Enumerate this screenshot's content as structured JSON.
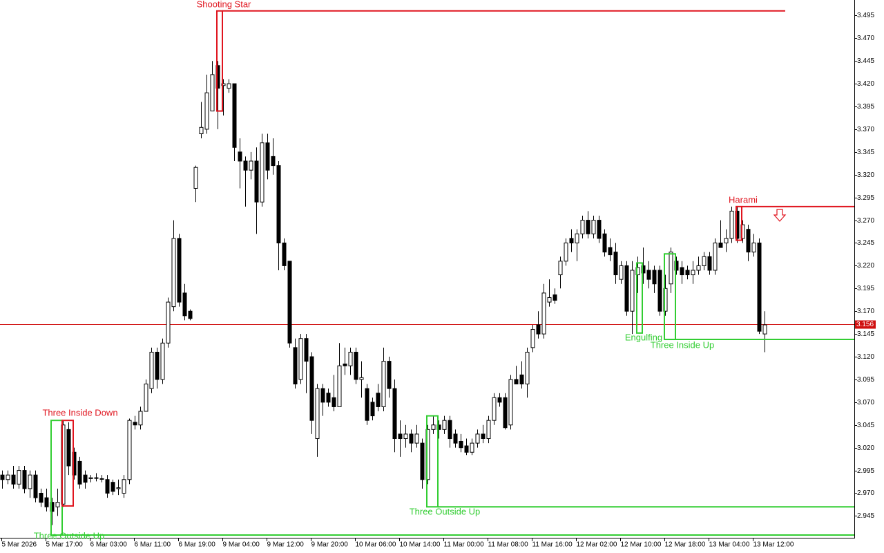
{
  "chart_data": {
    "type": "candlestick",
    "up_color": "#ffffff",
    "down_color": "#000000",
    "outline_color": "#000000",
    "ylim": [
      2.921,
      3.512
    ],
    "yticks": [
      2.945,
      {
        "value": 2.97,
        "label": "2.970"
      },
      2.995,
      {
        "value": 3.02,
        "label": "3.020"
      },
      3.045,
      {
        "value": 3.07,
        "label": "3.070"
      },
      3.095,
      {
        "value": 3.12,
        "label": "3.120"
      },
      3.145,
      {
        "value": 3.17,
        "label": "3.170"
      },
      3.195,
      {
        "value": 3.22,
        "label": "3.220"
      },
      3.245,
      {
        "value": 3.27,
        "label": "3.270"
      },
      3.295,
      {
        "value": 3.32,
        "label": "3.320"
      },
      3.345,
      {
        "value": 3.37,
        "label": "3.370"
      },
      3.395,
      {
        "value": 3.42,
        "label": "3.420"
      },
      3.445,
      {
        "value": 3.47,
        "label": "3.470"
      },
      3.495
    ],
    "xtick_labels": [
      "5 Mar 2026",
      "5 Mar 17:00",
      "6 Mar 03:00",
      "6 Mar 11:00",
      "6 Mar 19:00",
      "9 Mar 04:00",
      "9 Mar 12:00",
      "9 Mar 20:00",
      "10 Mar 06:00",
      "10 Mar 14:00",
      "11 Mar 00:00",
      "11 Mar 08:00",
      "11 Mar 16:00",
      "12 Mar 02:00",
      "12 Mar 10:00",
      "12 Mar 18:00",
      "13 Mar 04:00",
      "13 Mar 12:00"
    ],
    "current_price": 3.156,
    "current_price_color": "#d01010",
    "ohlc": [
      [
        2.99,
        2.995,
        2.975,
        2.985
      ],
      [
        2.985,
        2.995,
        2.98,
        2.99
      ],
      [
        2.99,
        3.0,
        2.975,
        2.98
      ],
      [
        2.98,
        3.0,
        2.975,
        2.995
      ],
      [
        2.995,
        3.0,
        2.97,
        2.975
      ],
      [
        2.975,
        2.995,
        2.965,
        2.99
      ],
      [
        2.99,
        2.995,
        2.96,
        2.965
      ],
      [
        2.97,
        2.975,
        2.955,
        2.96
      ],
      [
        2.965,
        2.975,
        2.95,
        2.955
      ],
      [
        2.96,
        2.965,
        2.935,
        2.95
      ],
      [
        2.955,
        2.975,
        2.945,
        2.96
      ],
      [
        2.958,
        3.05,
        2.955,
        3.045
      ],
      [
        3.04,
        3.048,
        2.99,
        3.0
      ],
      [
        3.015,
        3.02,
        2.985,
        2.99
      ],
      [
        3.005,
        3.01,
        2.975,
        2.98
      ],
      [
        2.99,
        2.995,
        2.975,
        2.982
      ],
      [
        2.986,
        2.99,
        2.982,
        2.987
      ],
      [
        2.987,
        2.992,
        2.983,
        2.987
      ],
      [
        2.986,
        2.99,
        2.982,
        2.986
      ],
      [
        2.985,
        2.99,
        2.965,
        2.97
      ],
      [
        2.982,
        2.985,
        2.968,
        2.972
      ],
      [
        2.975,
        2.985,
        2.968,
        2.976
      ],
      [
        2.97,
        2.99,
        2.965,
        2.985
      ],
      [
        2.985,
        3.052,
        2.98,
        3.05
      ],
      [
        3.048,
        3.055,
        3.04,
        3.045
      ],
      [
        3.045,
        3.065,
        3.04,
        3.06
      ],
      [
        3.06,
        3.095,
        3.06,
        3.09
      ],
      [
        3.085,
        3.13,
        3.08,
        3.125
      ],
      [
        3.125,
        3.13,
        3.085,
        3.095
      ],
      [
        3.095,
        3.14,
        3.09,
        3.135
      ],
      [
        3.135,
        3.185,
        3.13,
        3.18
      ],
      [
        3.175,
        3.27,
        3.17,
        3.25
      ],
      [
        3.25,
        3.255,
        3.175,
        3.18
      ],
      [
        3.19,
        3.2,
        3.16,
        3.165
      ],
      [
        3.17,
        3.172,
        3.16,
        3.162
      ],
      [
        3.305,
        3.33,
        3.29,
        3.328
      ],
      [
        3.365,
        3.4,
        3.36,
        3.372
      ],
      [
        3.37,
        3.43,
        3.365,
        3.41
      ],
      [
        3.39,
        3.445,
        3.39,
        3.43
      ],
      [
        3.44,
        3.445,
        3.37,
        3.415
      ],
      [
        3.418,
        3.425,
        3.385,
        3.42
      ],
      [
        3.415,
        3.425,
        3.41,
        3.42
      ],
      [
        3.42,
        3.42,
        3.335,
        3.35
      ],
      [
        3.345,
        3.36,
        3.305,
        3.335
      ],
      [
        3.335,
        3.34,
        3.285,
        3.325
      ],
      [
        3.325,
        3.345,
        3.315,
        3.335
      ],
      [
        3.335,
        3.35,
        3.255,
        3.29
      ],
      [
        3.29,
        3.365,
        3.285,
        3.355
      ],
      [
        3.355,
        3.365,
        3.315,
        3.325
      ],
      [
        3.34,
        3.36,
        3.32,
        3.33
      ],
      [
        3.33,
        3.335,
        3.215,
        3.245
      ],
      [
        3.245,
        3.25,
        3.215,
        3.22
      ],
      [
        3.225,
        3.225,
        3.13,
        3.135
      ],
      [
        3.13,
        3.14,
        3.085,
        3.09
      ],
      [
        3.095,
        3.145,
        3.09,
        3.14
      ],
      [
        3.14,
        3.145,
        3.08,
        3.115
      ],
      [
        3.12,
        3.125,
        3.035,
        3.05
      ],
      [
        3.03,
        3.09,
        3.01,
        3.085
      ],
      [
        3.085,
        3.09,
        3.055,
        3.07
      ],
      [
        3.08,
        3.085,
        3.065,
        3.07
      ],
      [
        3.075,
        3.1,
        3.06,
        3.065
      ],
      [
        3.065,
        3.135,
        3.065,
        3.11
      ],
      [
        3.112,
        3.13,
        3.1,
        3.11
      ],
      [
        3.11,
        3.13,
        3.1,
        3.125
      ],
      [
        3.125,
        3.13,
        3.09,
        3.095
      ],
      [
        3.095,
        3.115,
        3.075,
        3.097
      ],
      [
        3.085,
        3.09,
        3.045,
        3.05
      ],
      [
        3.07,
        3.075,
        3.05,
        3.055
      ],
      [
        3.08,
        3.09,
        3.06,
        3.065
      ],
      [
        3.065,
        3.13,
        3.06,
        3.115
      ],
      [
        3.115,
        3.12,
        3.075,
        3.085
      ],
      [
        3.085,
        3.095,
        3.015,
        3.03
      ],
      [
        3.035,
        3.05,
        3.01,
        3.03
      ],
      [
        3.03,
        3.045,
        3.02,
        3.035
      ],
      [
        3.035,
        3.04,
        3.015,
        3.025
      ],
      [
        3.025,
        3.045,
        3.02,
        3.035
      ],
      [
        3.025,
        3.03,
        2.975,
        2.985
      ],
      [
        2.985,
        3.045,
        2.98,
        3.04
      ],
      [
        3.04,
        3.055,
        3.035,
        3.045
      ],
      [
        3.045,
        3.05,
        3.03,
        3.04
      ],
      [
        3.04,
        3.055,
        3.035,
        3.05
      ],
      [
        3.05,
        3.055,
        3.02,
        3.03
      ],
      [
        3.035,
        3.04,
        3.02,
        3.025
      ],
      [
        3.027,
        3.035,
        3.015,
        3.02
      ],
      [
        3.022,
        3.03,
        3.012,
        3.015
      ],
      [
        3.015,
        3.03,
        3.012,
        3.025
      ],
      [
        3.025,
        3.04,
        3.02,
        3.035
      ],
      [
        3.035,
        3.045,
        3.025,
        3.03
      ],
      [
        3.03,
        3.055,
        3.025,
        3.05
      ],
      [
        3.05,
        3.08,
        3.045,
        3.075
      ],
      [
        3.075,
        3.08,
        3.065,
        3.07
      ],
      [
        3.075,
        3.08,
        3.04,
        3.042
      ],
      [
        3.045,
        3.1,
        3.04,
        3.095
      ],
      [
        3.095,
        3.11,
        3.09,
        3.09
      ],
      [
        3.1,
        3.115,
        3.085,
        3.09
      ],
      [
        3.09,
        3.13,
        3.075,
        3.125
      ],
      [
        3.13,
        3.155,
        3.125,
        3.15
      ],
      [
        3.155,
        3.17,
        3.14,
        3.145
      ],
      [
        3.145,
        3.2,
        3.14,
        3.19
      ],
      [
        3.18,
        3.205,
        3.175,
        3.185
      ],
      [
        3.188,
        3.195,
        3.178,
        3.182
      ],
      [
        3.21,
        3.23,
        3.195,
        3.225
      ],
      [
        3.225,
        3.25,
        3.22,
        3.245
      ],
      [
        3.25,
        3.26,
        3.235,
        3.245
      ],
      [
        3.245,
        3.26,
        3.225,
        3.255
      ],
      [
        3.255,
        3.275,
        3.25,
        3.27
      ],
      [
        3.27,
        3.28,
        3.25,
        3.255
      ],
      [
        3.255,
        3.275,
        3.25,
        3.27
      ],
      [
        3.27,
        3.275,
        3.245,
        3.25
      ],
      [
        3.255,
        3.26,
        3.23,
        3.235
      ],
      [
        3.24,
        3.25,
        3.225,
        3.232
      ],
      [
        3.235,
        3.245,
        3.2,
        3.21
      ],
      [
        3.205,
        3.225,
        3.2,
        3.22
      ],
      [
        3.22,
        3.225,
        3.165,
        3.17
      ],
      [
        3.17,
        3.225,
        3.145,
        3.215
      ],
      [
        3.21,
        3.23,
        3.19,
        3.218
      ],
      [
        3.22,
        3.24,
        3.2,
        3.212
      ],
      [
        3.215,
        3.225,
        3.195,
        3.205
      ],
      [
        3.215,
        3.22,
        3.19,
        3.2
      ],
      [
        3.215,
        3.22,
        3.165,
        3.17
      ],
      [
        3.17,
        3.21,
        3.165,
        3.195
      ],
      [
        3.2,
        3.24,
        3.19,
        3.235
      ],
      [
        3.225,
        3.23,
        3.21,
        3.215
      ],
      [
        3.218,
        3.225,
        3.2,
        3.21
      ],
      [
        3.215,
        3.22,
        3.205,
        3.21
      ],
      [
        3.21,
        3.225,
        3.2,
        3.215
      ],
      [
        3.215,
        3.23,
        3.21,
        3.22
      ],
      [
        3.22,
        3.235,
        3.215,
        3.23
      ],
      [
        3.23,
        3.235,
        3.21,
        3.215
      ],
      [
        3.215,
        3.25,
        3.21,
        3.245
      ],
      [
        3.245,
        3.27,
        3.24,
        3.24
      ],
      [
        3.245,
        3.26,
        3.235,
        3.25
      ],
      [
        3.25,
        3.285,
        3.245,
        3.28
      ],
      [
        3.28,
        3.285,
        3.245,
        3.25
      ],
      [
        3.25,
        3.27,
        3.245,
        3.265
      ],
      [
        3.26,
        3.265,
        3.225,
        3.235
      ],
      [
        3.235,
        3.255,
        3.23,
        3.245
      ],
      [
        3.245,
        3.25,
        3.145,
        3.148
      ],
      [
        3.145,
        3.17,
        3.125,
        3.155
      ]
    ],
    "patterns": [
      {
        "label": "Three Outside Up",
        "color": "#32cd32",
        "box": [
          3.05,
          2.924
        ],
        "level": 2.924
      },
      {
        "label": "Three Inside Down",
        "color": "#e0141e",
        "box": [
          3.05,
          2.956
        ]
      },
      {
        "label": "Shooting Star",
        "color": "#e0141e",
        "box": [
          3.5,
          3.39
        ],
        "level": 3.5
      },
      {
        "label": "Three Outside Up",
        "color": "#32cd32",
        "box": [
          3.055,
          2.955
        ],
        "level": 2.955
      },
      {
        "label": "Engulfing",
        "color": "#32cd32",
        "box": [
          3.223,
          3.146
        ]
      },
      {
        "label": "Three Inside Up",
        "color": "#32cd32",
        "box": [
          3.233,
          3.139
        ],
        "level": 3.139
      },
      {
        "label": "Harami",
        "color": "#e0141e",
        "box": [
          3.285,
          3.248
        ],
        "level": 3.285
      }
    ]
  }
}
